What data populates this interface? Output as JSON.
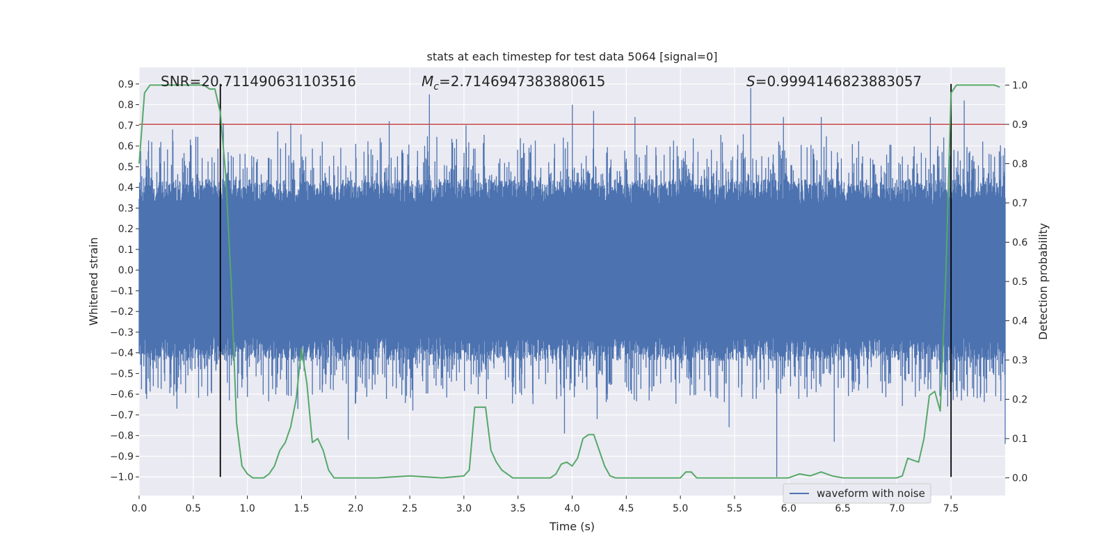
{
  "chart_data": {
    "type": "line",
    "title": "stats at each timestep for test data 5064 [signal=0]",
    "xlabel": "Time (s)",
    "ylabel": "Whitened strain",
    "y2label": "Detection probability",
    "xlim": [
      0.0,
      8.0
    ],
    "ylim": [
      -1.09,
      0.98
    ],
    "y2lim": [
      -0.045,
      1.045
    ],
    "xticks": [
      0.0,
      0.5,
      1.0,
      1.5,
      2.0,
      2.5,
      3.0,
      3.5,
      4.0,
      4.5,
      5.0,
      5.5,
      6.0,
      6.5,
      7.0,
      7.5
    ],
    "xtick_labels": [
      "0.0",
      "0.5",
      "1.0",
      "1.5",
      "2.0",
      "2.5",
      "3.0",
      "3.5",
      "4.0",
      "4.5",
      "5.0",
      "5.5",
      "6.0",
      "6.5",
      "7.0",
      "7.5"
    ],
    "yticks": [
      -1.0,
      -0.9,
      -0.8,
      -0.7,
      -0.6,
      -0.5,
      -0.4,
      -0.3,
      -0.2,
      -0.1,
      0.0,
      0.1,
      0.2,
      0.3,
      0.4,
      0.5,
      0.6,
      0.7,
      0.8,
      0.9
    ],
    "ytick_labels": [
      "−1.0",
      "−0.9",
      "−0.8",
      "−0.7",
      "−0.6",
      "−0.5",
      "−0.4",
      "−0.3",
      "−0.2",
      "−0.1",
      "0.0",
      "0.1",
      "0.2",
      "0.3",
      "0.4",
      "0.5",
      "0.6",
      "0.7",
      "0.8",
      "0.9"
    ],
    "y2ticks": [
      0.0,
      0.1,
      0.2,
      0.3,
      0.4,
      0.5,
      0.6,
      0.7,
      0.8,
      0.9,
      1.0
    ],
    "y2tick_labels": [
      "0.0",
      "0.1",
      "0.2",
      "0.3",
      "0.4",
      "0.5",
      "0.6",
      "0.7",
      "0.8",
      "0.9",
      "1.0"
    ],
    "grid": true,
    "legend": {
      "placement": "lower-right",
      "entries": [
        "waveform with noise"
      ]
    },
    "annotations": {
      "snr": "SNR=20.711490631103516",
      "mc_symbol": "M",
      "mc_sub": "c",
      "mc_value": "=2.7146947383880615",
      "s_symbol": "S",
      "s_value": "=0.9994146823883057"
    },
    "vlines_x": [
      0.75,
      7.5
    ],
    "vline_y_range": [
      -1.0,
      0.9
    ],
    "threshold_y2": 0.9,
    "waveform": {
      "name": "waveform with noise",
      "color": "#4c72b0",
      "x_range": [
        0.0,
        8.0
      ],
      "samples": 2200,
      "core_amplitude": 0.32,
      "spike_peaks": [
        {
          "x": 0.2,
          "y": 0.62
        },
        {
          "x": 0.31,
          "y": 0.68
        },
        {
          "x": 0.78,
          "y": 0.71
        },
        {
          "x": 1.28,
          "y": 0.67
        },
        {
          "x": 1.4,
          "y": 0.71
        },
        {
          "x": 2.31,
          "y": 0.72
        },
        {
          "x": 2.68,
          "y": 0.85
        },
        {
          "x": 3.02,
          "y": 0.7
        },
        {
          "x": 4.0,
          "y": 0.8
        },
        {
          "x": 4.2,
          "y": 0.77
        },
        {
          "x": 4.58,
          "y": 0.74
        },
        {
          "x": 5.65,
          "y": 0.88
        },
        {
          "x": 5.95,
          "y": 0.74
        },
        {
          "x": 6.3,
          "y": 0.74
        },
        {
          "x": 7.31,
          "y": 0.74
        },
        {
          "x": 7.62,
          "y": 0.82
        }
      ],
      "spike_troughs": [
        {
          "x": 0.35,
          "y": -0.67
        },
        {
          "x": 1.93,
          "y": -0.82
        },
        {
          "x": 3.93,
          "y": -0.79
        },
        {
          "x": 4.23,
          "y": -0.72
        },
        {
          "x": 5.45,
          "y": -0.76
        },
        {
          "x": 5.89,
          "y": -1.0
        },
        {
          "x": 6.42,
          "y": -0.83
        },
        {
          "x": 8.0,
          "y": -0.84
        }
      ]
    },
    "detection_probability": {
      "color": "#55a868",
      "x": [
        0.0,
        0.05,
        0.1,
        0.15,
        0.2,
        0.25,
        0.3,
        0.35,
        0.4,
        0.45,
        0.5,
        0.55,
        0.6,
        0.65,
        0.7,
        0.75,
        0.8,
        0.85,
        0.9,
        0.95,
        1.0,
        1.05,
        1.1,
        1.15,
        1.2,
        1.25,
        1.3,
        1.35,
        1.4,
        1.45,
        1.5,
        1.55,
        1.6,
        1.65,
        1.7,
        1.75,
        1.8,
        1.85,
        1.9,
        2.0,
        2.2,
        2.5,
        2.8,
        3.0,
        3.05,
        3.1,
        3.15,
        3.2,
        3.25,
        3.3,
        3.35,
        3.4,
        3.45,
        3.5,
        3.6,
        3.8,
        3.85,
        3.9,
        3.95,
        4.0,
        4.05,
        4.1,
        4.15,
        4.2,
        4.25,
        4.3,
        4.35,
        4.4,
        4.5,
        5.0,
        5.05,
        5.1,
        5.15,
        5.2,
        5.4,
        6.0,
        6.1,
        6.2,
        6.3,
        6.4,
        6.5,
        7.0,
        7.05,
        7.1,
        7.15,
        7.2,
        7.25,
        7.3,
        7.35,
        7.4,
        7.45,
        7.5,
        7.55,
        7.6,
        7.65,
        7.7,
        7.75,
        7.8,
        7.85,
        7.9,
        7.95
      ],
      "y": [
        0.8,
        0.98,
        1.0,
        1.0,
        1.0,
        1.0,
        1.0,
        1.0,
        1.0,
        1.0,
        1.0,
        1.0,
        1.0,
        0.99,
        0.99,
        0.93,
        0.77,
        0.5,
        0.14,
        0.03,
        0.01,
        0.0,
        0.0,
        0.0,
        0.01,
        0.03,
        0.07,
        0.09,
        0.13,
        0.2,
        0.33,
        0.24,
        0.09,
        0.1,
        0.07,
        0.02,
        0.0,
        0.0,
        0.0,
        0.0,
        0.0,
        0.005,
        0.0,
        0.005,
        0.02,
        0.18,
        0.18,
        0.18,
        0.07,
        0.04,
        0.02,
        0.01,
        0.0,
        0.0,
        0.0,
        0.0,
        0.01,
        0.035,
        0.04,
        0.03,
        0.05,
        0.1,
        0.11,
        0.11,
        0.07,
        0.03,
        0.005,
        0.0,
        0.0,
        0.0,
        0.015,
        0.015,
        0.0,
        0.0,
        0.0,
        0.0,
        0.01,
        0.005,
        0.015,
        0.005,
        0.0,
        0.0,
        0.005,
        0.05,
        0.045,
        0.04,
        0.1,
        0.21,
        0.22,
        0.17,
        0.5,
        0.98,
        1.0,
        1.0,
        1.0,
        1.0,
        1.0,
        1.0,
        1.0,
        1.0,
        0.995
      ]
    },
    "colors": {
      "background": "#eaeaf2",
      "grid": "#ffffff",
      "text": "#262626",
      "threshold": "#c44e52",
      "vline": "#000000"
    }
  }
}
